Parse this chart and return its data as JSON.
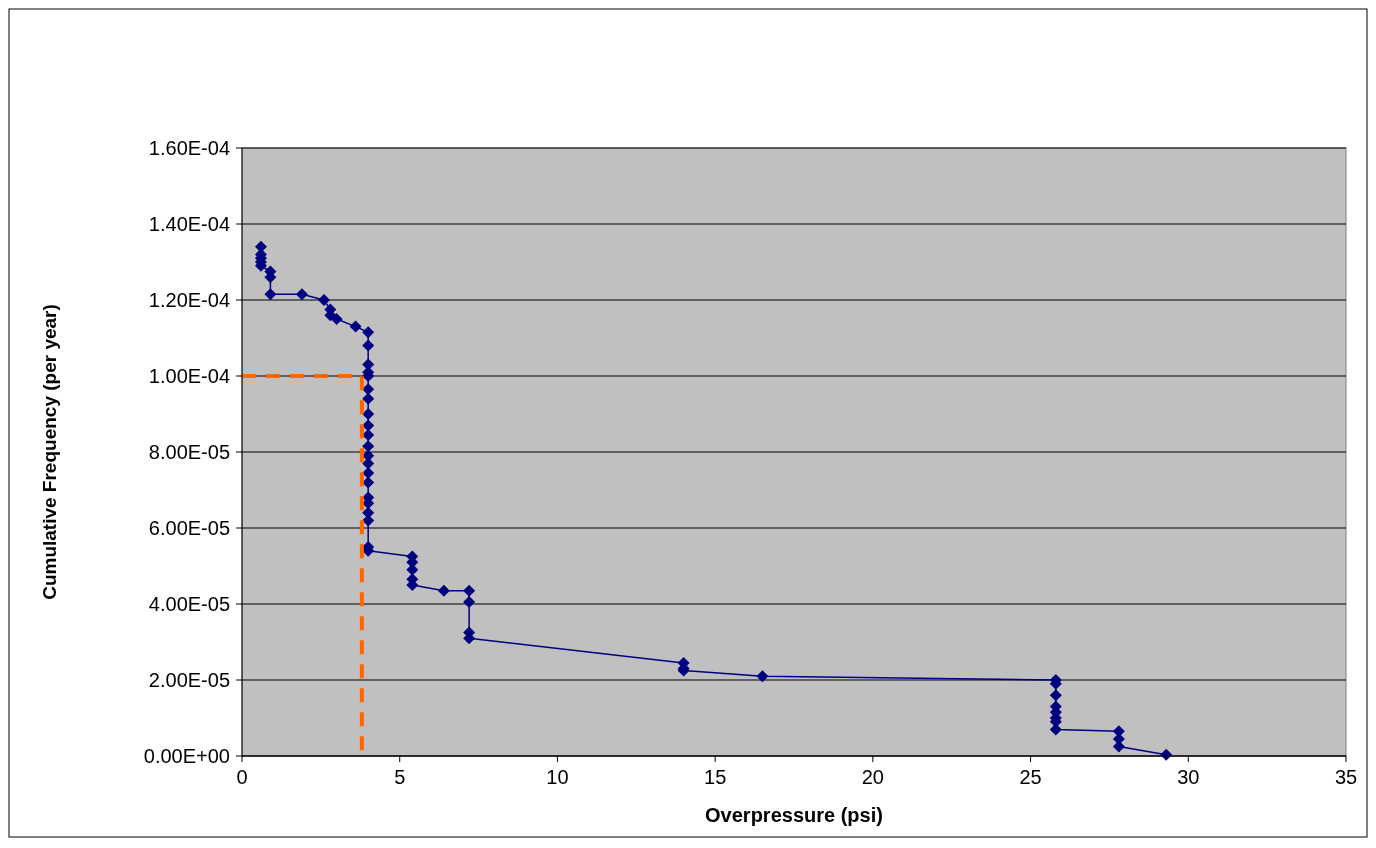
{
  "chart_data": {
    "type": "line",
    "xlabel": "Overpressure (psi)",
    "ylabel": "Cumulative Frequency (per year)",
    "xlim": [
      0,
      35
    ],
    "xticks": [
      0,
      5,
      10,
      15,
      20,
      25,
      30,
      35
    ],
    "ylim": [
      0,
      0.00016
    ],
    "yticks": [
      {
        "value": 0,
        "label": "0.00E+00"
      },
      {
        "value": 2e-05,
        "label": "2.00E-05"
      },
      {
        "value": 4e-05,
        "label": "4.00E-05"
      },
      {
        "value": 6e-05,
        "label": "6.00E-05"
      },
      {
        "value": 8e-05,
        "label": "8.00E-05"
      },
      {
        "value": 0.0001,
        "label": "1.00E-04"
      },
      {
        "value": 0.00012,
        "label": "1.20E-04"
      },
      {
        "value": 0.00014,
        "label": "1.40E-04"
      },
      {
        "value": 0.00016,
        "label": "1.60E-04"
      }
    ],
    "grid": "y",
    "series": [
      {
        "color": "#000080",
        "marker": "diamond",
        "line_style": "solid",
        "x": [
          0.6,
          0.6,
          0.6,
          0.6,
          0.6,
          0.9,
          0.9,
          0.9,
          1.9,
          2.6,
          2.8,
          2.8,
          3.0,
          3.6,
          4.0,
          4.0,
          4.0,
          4.0,
          4.0,
          4.0,
          4.0,
          4.0,
          4.0,
          4.0,
          4.0,
          4.0,
          4.0,
          4.0,
          4.0,
          4.0,
          4.0,
          4.0,
          4.0,
          4.0,
          4.0,
          5.4,
          5.4,
          5.4,
          5.4,
          5.4,
          6.4,
          7.2,
          7.2,
          7.2,
          7.2,
          14.0,
          14.0,
          14.0,
          16.5,
          25.8,
          25.8,
          25.8,
          25.8,
          25.8,
          25.8,
          25.8,
          25.8,
          27.8,
          27.8,
          27.8,
          29.3
        ],
        "values": [
          0.000134,
          0.000132,
          0.000131,
          0.00013,
          0.000129,
          0.0001275,
          0.000126,
          0.0001215,
          0.0001215,
          0.00012,
          0.0001175,
          0.000116,
          0.000115,
          0.000113,
          0.0001115,
          0.000108,
          0.000103,
          0.000101,
          0.0001,
          9.65e-05,
          9.4e-05,
          9e-05,
          8.7e-05,
          8.45e-05,
          8.15e-05,
          7.9e-05,
          7.7e-05,
          7.45e-05,
          7.2e-05,
          6.8e-05,
          6.65e-05,
          6.4e-05,
          6.2e-05,
          5.5e-05,
          5.4e-05,
          5.25e-05,
          5.1e-05,
          4.9e-05,
          4.65e-05,
          4.5e-05,
          4.35e-05,
          4.35e-05,
          4.05e-05,
          3.25e-05,
          3.1e-05,
          2.45e-05,
          2.3e-05,
          2.25e-05,
          2.1e-05,
          2e-05,
          1.9e-05,
          1.6e-05,
          1.3e-05,
          1.15e-05,
          1e-05,
          9e-06,
          7e-06,
          6.5e-06,
          4.5e-06,
          2.5e-06,
          3e-07
        ]
      },
      {
        "color": "#ff6600",
        "marker": "none",
        "line_style": "dashed",
        "x": [
          0,
          3.8,
          3.8
        ],
        "values": [
          0.0001,
          0.0001,
          0
        ]
      }
    ]
  }
}
